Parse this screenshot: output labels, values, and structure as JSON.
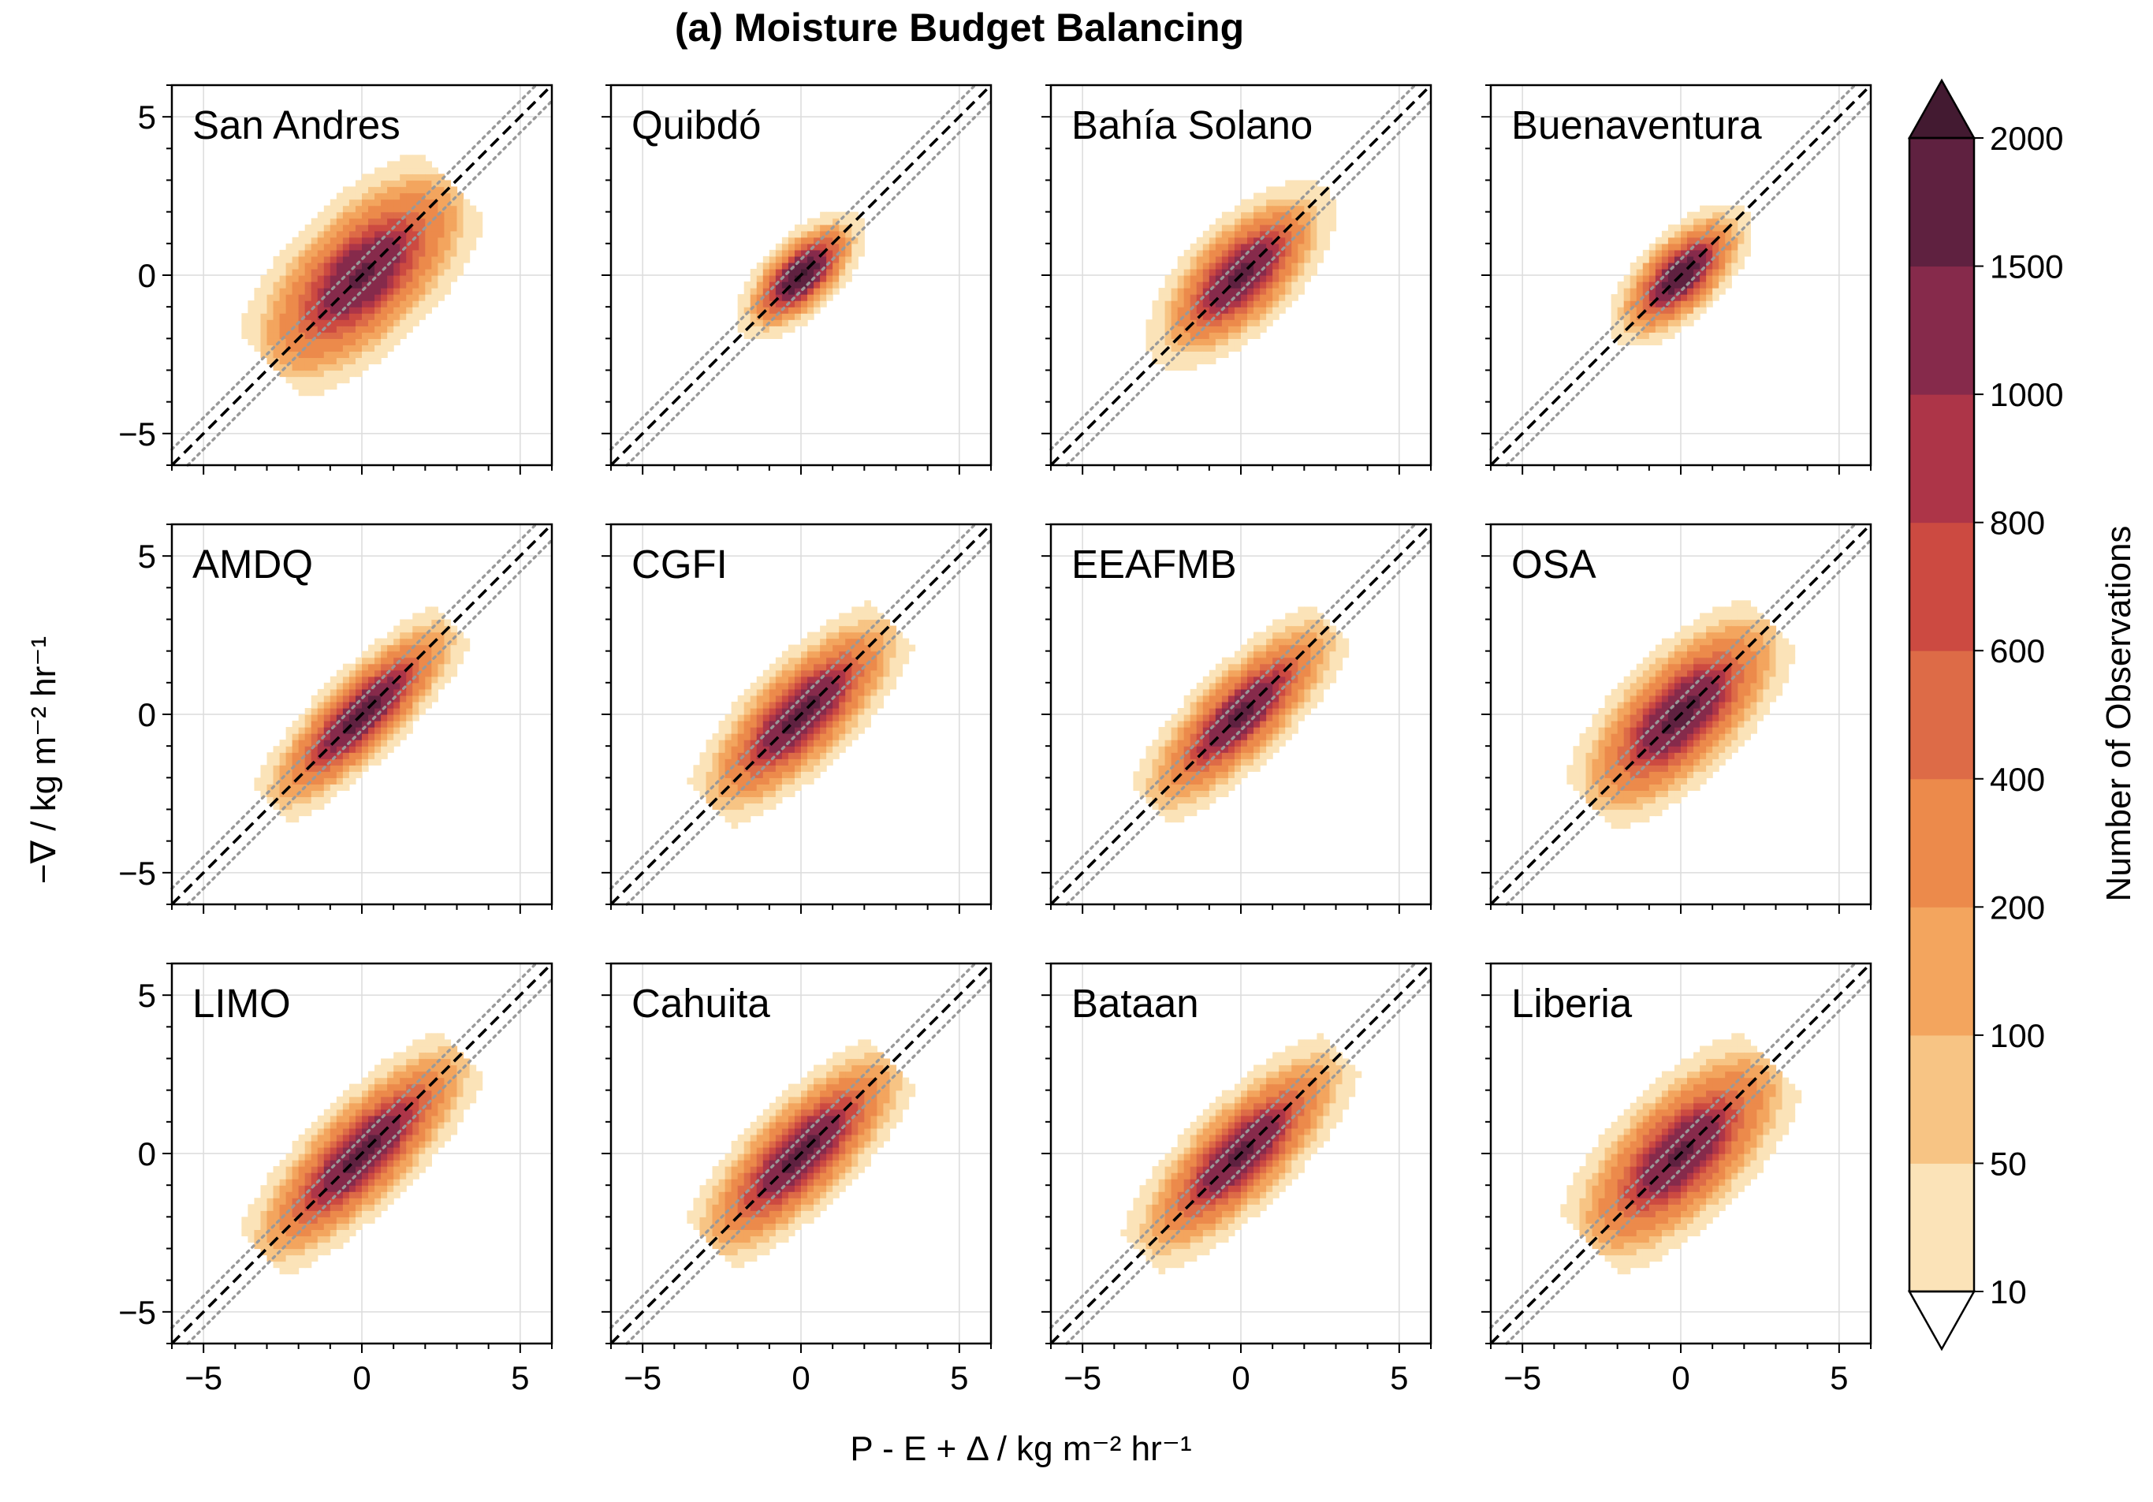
{
  "chart_data": {
    "type": "heatmap",
    "title": "(a) Moisture Budget Balancing",
    "xlabel": "P - E + Δ / kg m⁻² hr⁻¹",
    "ylabel": "−∇ / kg m⁻² hr⁻¹",
    "xlim": [
      -6,
      6
    ],
    "ylim": [
      -6,
      6
    ],
    "x_ticks": [
      "−5",
      "0",
      "5"
    ],
    "y_ticks": [
      "5",
      "0",
      "−5"
    ],
    "grid": true,
    "reference_lines": [
      {
        "style": "dashed",
        "color": "#000000",
        "relation": "y = x"
      },
      {
        "style": "dotted",
        "color": "#999999",
        "relation": "y = x + 0.5"
      },
      {
        "style": "dotted",
        "color": "#999999",
        "relation": "y = x − 0.5"
      }
    ],
    "colorbar": {
      "label": "Number of Observations",
      "bounds": [
        "10",
        "50",
        "100",
        "200",
        "400",
        "600",
        "800",
        "1000",
        "1500",
        "2000"
      ],
      "extend": "both",
      "colors": [
        "#fbe3b8",
        "#f7c484",
        "#f3a55e",
        "#ec8a4b",
        "#dd6b47",
        "#cc4a41",
        "#ad3548",
        "#862a4b",
        "#5f2140"
      ],
      "under_color": "#ffffff",
      "over_color": "#431a31"
    },
    "panels": [
      {
        "name": "San Andres",
        "spread_x": 1.6,
        "spread_y": 0.75,
        "extent": 4.0,
        "peak": 1600
      },
      {
        "name": "Quibdó",
        "spread_x": 0.8,
        "spread_y": 0.38,
        "extent": 3.2,
        "peak": 2100
      },
      {
        "name": "Bahía Solano",
        "spread_x": 1.2,
        "spread_y": 0.55,
        "extent": 4.0,
        "peak": 1700
      },
      {
        "name": "Buenaventura",
        "spread_x": 0.9,
        "spread_y": 0.42,
        "extent": 3.3,
        "peak": 2000
      },
      {
        "name": "AMDQ",
        "spread_x": 1.5,
        "spread_y": 0.45,
        "extent": 4.0,
        "peak": 1700
      },
      {
        "name": "CGFI",
        "spread_x": 1.5,
        "spread_y": 0.55,
        "extent": 4.0,
        "peak": 1700
      },
      {
        "name": "EEAFMB",
        "spread_x": 1.5,
        "spread_y": 0.5,
        "extent": 4.0,
        "peak": 1600
      },
      {
        "name": "OSA",
        "spread_x": 1.5,
        "spread_y": 0.65,
        "extent": 4.0,
        "peak": 1700
      },
      {
        "name": "LIMO",
        "spread_x": 1.7,
        "spread_y": 0.55,
        "extent": 4.5,
        "peak": 1700
      },
      {
        "name": "Cahuita",
        "spread_x": 1.6,
        "spread_y": 0.55,
        "extent": 4.0,
        "peak": 1700
      },
      {
        "name": "Bataan",
        "spread_x": 1.6,
        "spread_y": 0.55,
        "extent": 4.5,
        "peak": 1600
      },
      {
        "name": "Liberia",
        "spread_x": 1.6,
        "spread_y": 0.7,
        "extent": 4.0,
        "peak": 1600
      }
    ]
  }
}
